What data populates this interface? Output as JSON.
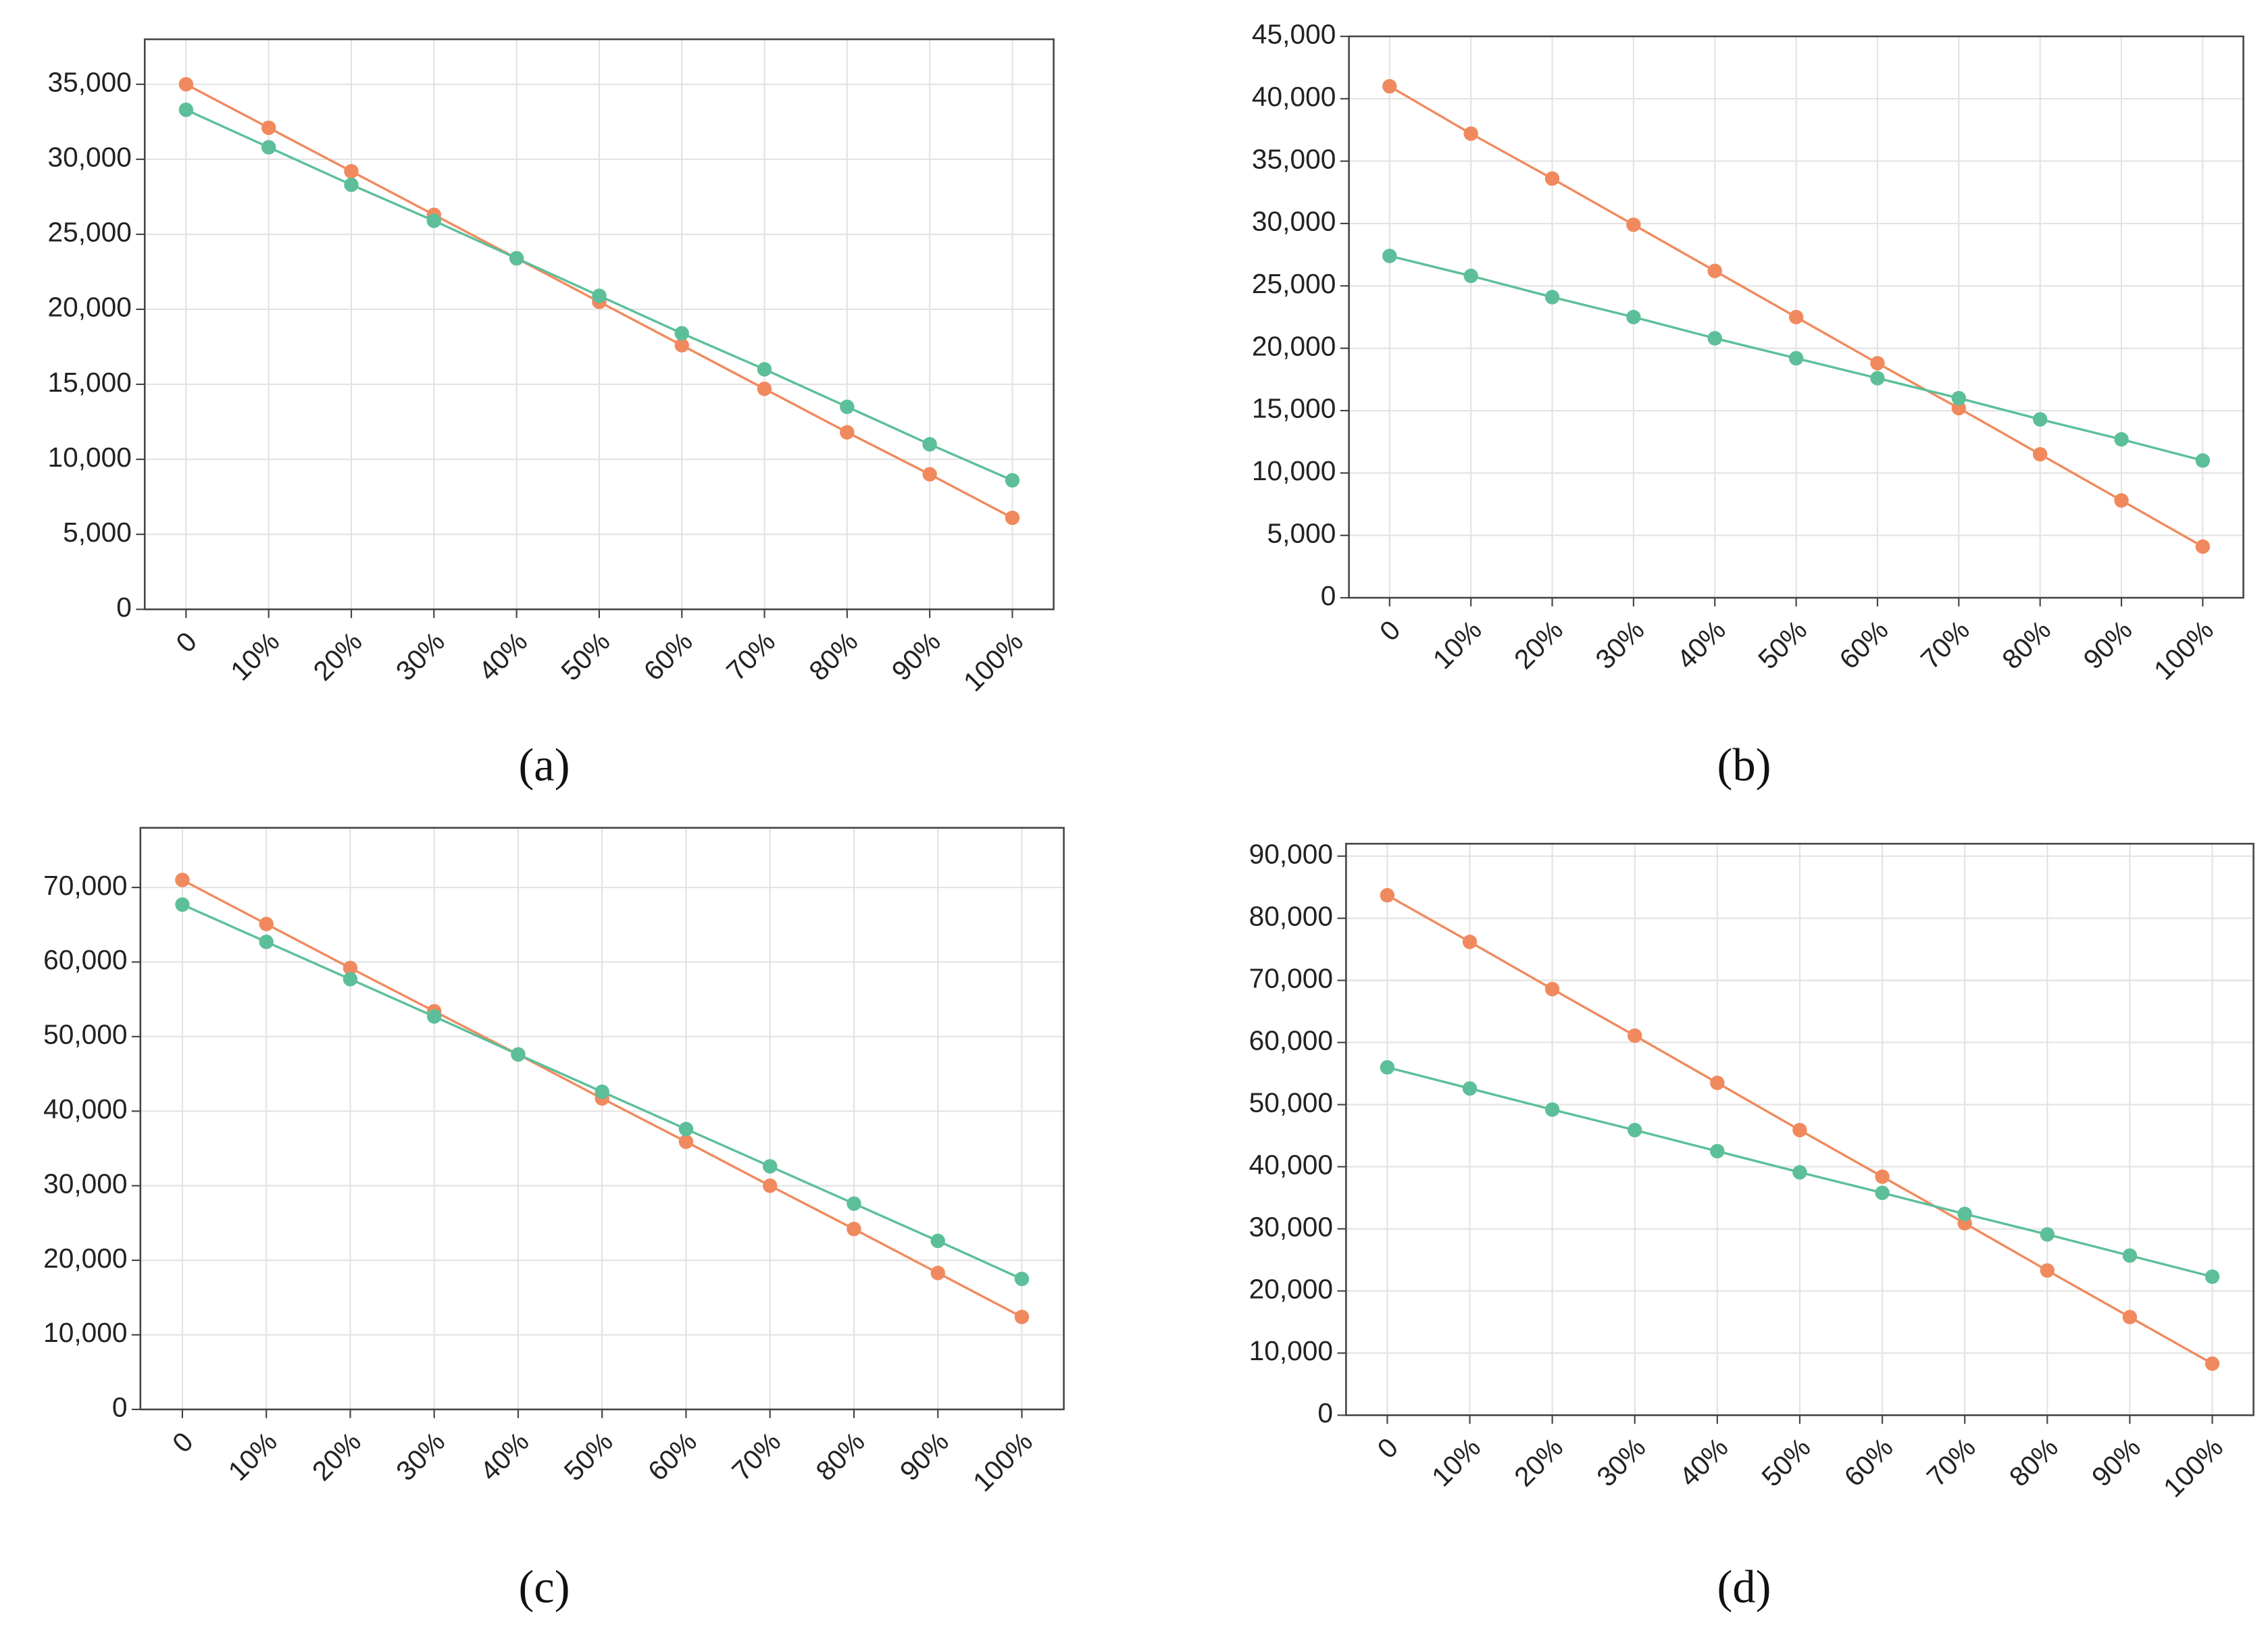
{
  "chart_data": [
    {
      "type": "line",
      "caption": "(a)",
      "categories": [
        "0",
        "10%",
        "20%",
        "30%",
        "40%",
        "50%",
        "60%",
        "70%",
        "80%",
        "90%",
        "100%"
      ],
      "series": [
        {
          "color": "#f08a5e",
          "values": [
            35000,
            32100,
            29200,
            26300,
            23400,
            20500,
            17600,
            14700,
            11800,
            9000,
            6100
          ]
        },
        {
          "color": "#5cbf9a",
          "values": [
            33300,
            30800,
            28300,
            25900,
            23400,
            20900,
            18400,
            16000,
            13500,
            11000,
            8600
          ]
        }
      ],
      "ylim": [
        0,
        38000
      ],
      "yticks": [
        0,
        {
          "value": 5000,
          "label": "5,000"
        },
        {
          "value": 10000,
          "label": "10,000"
        },
        {
          "value": 15000,
          "label": "15,000"
        },
        {
          "value": 20000,
          "label": "20,000"
        },
        {
          "value": 25000,
          "label": "25,000"
        },
        {
          "value": 30000,
          "label": "30,000"
        },
        {
          "value": 35000,
          "label": "35,000"
        }
      ],
      "grid": true
    },
    {
      "type": "line",
      "caption": "(b)",
      "categories": [
        "0",
        "10%",
        "20%",
        "30%",
        "40%",
        "50%",
        "60%",
        "70%",
        "80%",
        "90%",
        "100%"
      ],
      "series": [
        {
          "color": "#f08a5e",
          "values": [
            41000,
            37200,
            33600,
            29900,
            26200,
            22500,
            18800,
            15200,
            11500,
            7800,
            4100
          ]
        },
        {
          "color": "#5cbf9a",
          "values": [
            27400,
            25800,
            24100,
            22500,
            20800,
            19200,
            17600,
            16000,
            14300,
            12700,
            11000
          ]
        }
      ],
      "ylim": [
        0,
        45000
      ],
      "yticks": [
        0,
        {
          "value": 5000,
          "label": "5,000"
        },
        {
          "value": 10000,
          "label": "10,000"
        },
        {
          "value": 15000,
          "label": "15,000"
        },
        {
          "value": 20000,
          "label": "20,000"
        },
        {
          "value": 25000,
          "label": "25,000"
        },
        {
          "value": 30000,
          "label": "30,000"
        },
        {
          "value": 35000,
          "label": "35,000"
        },
        {
          "value": 40000,
          "label": "40,000"
        },
        {
          "value": 45000,
          "label": "45,000"
        }
      ],
      "grid": true
    },
    {
      "type": "line",
      "caption": "(c)",
      "categories": [
        "0",
        "10%",
        "20%",
        "30%",
        "40%",
        "50%",
        "60%",
        "70%",
        "80%",
        "90%",
        "100%"
      ],
      "series": [
        {
          "color": "#f08a5e",
          "values": [
            71000,
            65100,
            59200,
            53400,
            47600,
            41700,
            35900,
            30000,
            24200,
            18300,
            12400
          ]
        },
        {
          "color": "#5cbf9a",
          "values": [
            67700,
            62700,
            57700,
            52700,
            47600,
            42600,
            37600,
            32600,
            27600,
            22600,
            17500
          ]
        }
      ],
      "ylim": [
        0,
        78000
      ],
      "yticks": [
        0,
        {
          "value": 10000,
          "label": "10,000"
        },
        {
          "value": 20000,
          "label": "20,000"
        },
        {
          "value": 30000,
          "label": "30,000"
        },
        {
          "value": 40000,
          "label": "40,000"
        },
        {
          "value": 50000,
          "label": "50,000"
        },
        {
          "value": 60000,
          "label": "60,000"
        },
        {
          "value": 70000,
          "label": "70,000"
        }
      ],
      "grid": true
    },
    {
      "type": "line",
      "caption": "(d)",
      "categories": [
        "0",
        "10%",
        "20%",
        "30%",
        "40%",
        "50%",
        "60%",
        "70%",
        "80%",
        "90%",
        "100%"
      ],
      "series": [
        {
          "color": "#f08a5e",
          "values": [
            83700,
            76200,
            68600,
            61100,
            53500,
            45900,
            38400,
            30900,
            23300,
            15800,
            8300
          ]
        },
        {
          "color": "#5cbf9a",
          "values": [
            56000,
            52600,
            49200,
            45900,
            42500,
            39100,
            35800,
            32400,
            29100,
            25700,
            22300
          ]
        }
      ],
      "ylim": [
        0,
        92000
      ],
      "yticks": [
        0,
        {
          "value": 10000,
          "label": "10,000"
        },
        {
          "value": 20000,
          "label": "20,000"
        },
        {
          "value": 30000,
          "label": "30,000"
        },
        {
          "value": 40000,
          "label": "40,000"
        },
        {
          "value": 50000,
          "label": "50,000"
        },
        {
          "value": 60000,
          "label": "60,000"
        },
        {
          "value": 70000,
          "label": "70,000"
        },
        {
          "value": 80000,
          "label": "80,000"
        },
        {
          "value": 90000,
          "label": "90,000"
        }
      ],
      "grid": true
    }
  ]
}
